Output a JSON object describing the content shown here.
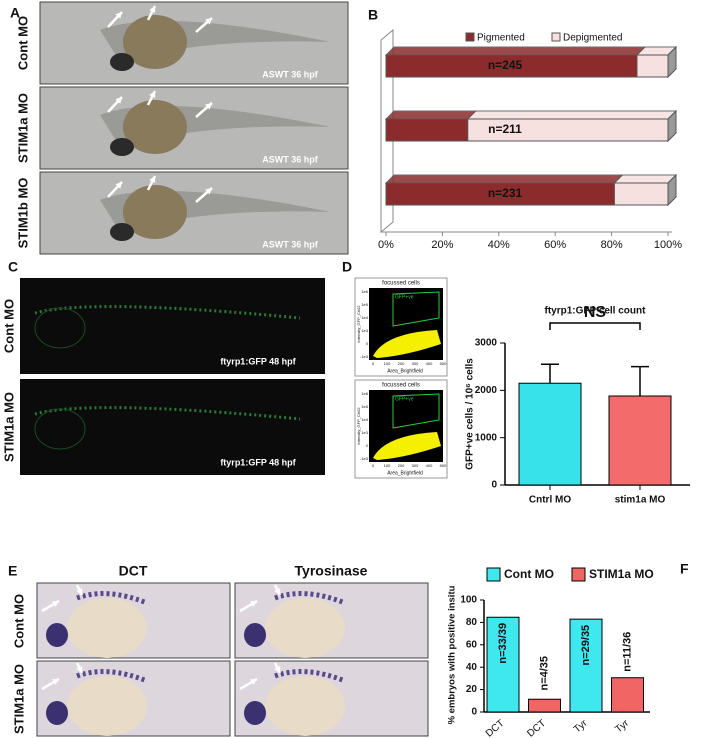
{
  "panel_labels": [
    "A",
    "B",
    "C",
    "D",
    "E",
    "F"
  ],
  "panel_a": {
    "rows": [
      {
        "label": "Cont MO",
        "caption": "ASWT 36 hpf"
      },
      {
        "label": "STIM1a MO",
        "caption": "ASWT 36 hpf"
      },
      {
        "label": "STIM1b MO",
        "caption": "ASWT 36 hpf"
      }
    ]
  },
  "panel_c": {
    "rows": [
      {
        "label": "Cont MO",
        "caption": "ftyrp1:GFP 48 hpf"
      },
      {
        "label": "STIM1a  MO",
        "caption": "ftyrp1:GFP 48 hpf"
      }
    ]
  },
  "panel_d_flow": [
    {
      "title": "focussed cells",
      "gate": "GFP+ve",
      "x_label": "Area_Brightfield",
      "y_label": "Intensity_GFP_Ch02",
      "x_ticks": [
        "0",
        "100",
        "200",
        "300",
        "400",
        "500"
      ],
      "y_ticks": [
        "1e6",
        "1e5",
        "1e4",
        "1e3",
        "0",
        "-1e3"
      ]
    },
    {
      "title": "focussed cells",
      "gate": "GFP+ve",
      "x_label": "Area_Brightfield",
      "y_label": "Intensity_GFP_Ch02",
      "x_ticks": [
        "0",
        "100",
        "200",
        "300",
        "400",
        "500"
      ],
      "y_ticks": [
        "1e6",
        "1e5",
        "1e4",
        "1e3",
        "0",
        "-1e3"
      ]
    }
  ],
  "panel_e": {
    "columns": [
      "DCT",
      "Tyrosinase"
    ],
    "rows": [
      "Cont MO",
      "STIM1a MO"
    ]
  },
  "chart_data": [
    {
      "type": "stacked_hbar",
      "categories": [
        null,
        null,
        null
      ],
      "series": [
        {
          "name": "Pigmented",
          "color": "#8b2b2b",
          "values": [
            89,
            29,
            81
          ]
        },
        {
          "name": "Depigmented",
          "color": "#f6e0e0",
          "values": [
            11,
            71,
            19
          ]
        }
      ],
      "annotations": [
        "n=245",
        "n=211",
        "n=231"
      ],
      "xlim": [
        0,
        100
      ],
      "xticks": [
        {
          "value": 0,
          "label": "0%"
        },
        {
          "value": 20,
          "label": "20%"
        },
        {
          "value": 40,
          "label": "40%"
        },
        {
          "value": 60,
          "label": "60%"
        },
        {
          "value": 80,
          "label": "80%"
        },
        {
          "value": 100,
          "label": "100%"
        }
      ],
      "legend": "top"
    },
    {
      "type": "bar",
      "title": "ftyrp1:GFP cell count",
      "y_label": "GFP+ve cells / 10⁶ cells",
      "categories": [
        "Cntrl MO",
        "stim1a MO"
      ],
      "values": [
        2150,
        1880
      ],
      "errors": [
        400,
        620
      ],
      "colors": [
        "#38e2ea",
        "#f46b6b"
      ],
      "ylim": [
        0,
        3000
      ],
      "yticks": [
        0,
        1000,
        2000,
        3000
      ],
      "annotation": "NS"
    },
    {
      "type": "grouped_bar",
      "y_label": "% embryos with positive insitu",
      "categories": [
        "DCT",
        "DCT",
        "Tyr",
        "Tyr"
      ],
      "series": [
        {
          "name": "Cont MO",
          "color": "#3ee8ee",
          "values": [
            84.6,
            null,
            82.9,
            null
          ],
          "value_labels": [
            "n=33/39",
            null,
            "n=29/35",
            null
          ]
        },
        {
          "name": "STIM1a MO",
          "color": "#f26565",
          "values": [
            null,
            11.4,
            null,
            30.6
          ],
          "value_labels": [
            null,
            "n=4/35",
            null,
            "n=11/36"
          ]
        }
      ],
      "ylim": [
        0,
        100
      ],
      "yticks": [
        0,
        20,
        40,
        60,
        80,
        100
      ],
      "legend": "top"
    }
  ]
}
